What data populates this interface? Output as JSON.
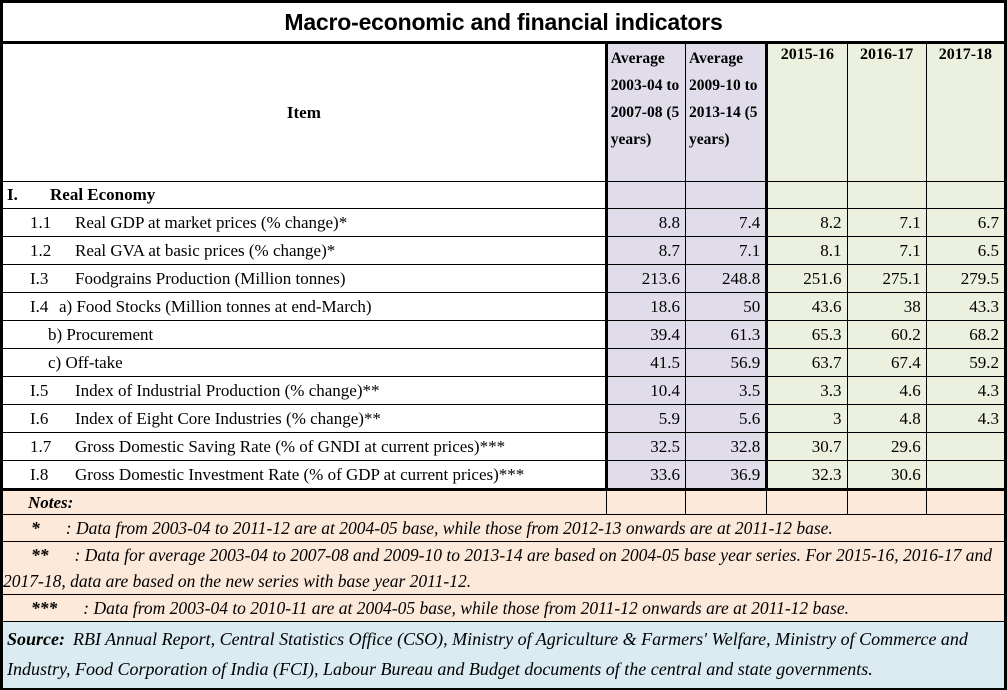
{
  "title": "Macro-economic and financial indicators",
  "colors": {
    "lavender_avg_columns": "#E1DCE9",
    "green_year_columns": "#EBF1DE",
    "peach_notes": "#FCE9DA",
    "blue_source": "#DAECF2",
    "border": "#000000"
  },
  "table": {
    "item_header": "Item",
    "column_headers": [
      "Average 2003-04 to 2007-08 (5 years)",
      "Average 2009-10 to 2013-14 (5 years)",
      "2015-16",
      "2016-17",
      "2017-18"
    ],
    "section": {
      "num": "I.",
      "label": "Real Economy"
    },
    "rows": [
      {
        "num": "1.1",
        "label": "Real GDP at market prices (% change)*",
        "indent": 0,
        "values": [
          "8.8",
          "7.4",
          "8.2",
          "7.1",
          "6.7"
        ]
      },
      {
        "num": "1.2",
        "label": "Real GVA at basic prices (% change)*",
        "indent": 0,
        "values": [
          "8.7",
          "7.1",
          "8.1",
          "7.1",
          "6.5"
        ]
      },
      {
        "num": "I.3",
        "label": "Foodgrains Production (Million tonnes)",
        "indent": 0,
        "values": [
          "213.6",
          "248.8",
          "251.6",
          "275.1",
          "279.5"
        ]
      },
      {
        "num": "I.4",
        "label": "a) Food Stocks (Million tonnes at end-March)",
        "indent": 0,
        "values": [
          "18.6",
          "50",
          "43.6",
          "38",
          "43.3"
        ]
      },
      {
        "num": "",
        "label": "b) Procurement",
        "indent": 2,
        "values": [
          "39.4",
          "61.3",
          "65.3",
          "60.2",
          "68.2"
        ]
      },
      {
        "num": "",
        "label": "c) Off-take",
        "indent": 2,
        "values": [
          "41.5",
          "56.9",
          "63.7",
          "67.4",
          "59.2"
        ]
      },
      {
        "num": "I.5",
        "label": "Index of Industrial Production (% change)**",
        "indent": 0,
        "values": [
          "10.4",
          "3.5",
          "3.3",
          "4.6",
          "4.3"
        ]
      },
      {
        "num": "I.6",
        "label": "Index of Eight Core Industries (% change)**",
        "indent": 0,
        "values": [
          "5.9",
          "5.6",
          "3",
          "4.8",
          "4.3"
        ]
      },
      {
        "num": "1.7",
        "label": "Gross Domestic Saving Rate (% of GNDI at current prices)***",
        "indent": 0,
        "values": [
          "32.5",
          "32.8",
          "30.7",
          "29.6",
          ""
        ]
      },
      {
        "num": "I.8",
        "label": "Gross Domestic Investment Rate (% of GDP at current prices)***",
        "indent": 0,
        "values": [
          "33.6",
          "36.9",
          "32.3",
          "30.6",
          ""
        ]
      }
    ]
  },
  "notes": {
    "label": "Notes:",
    "items": [
      {
        "marker": "*",
        "text": ": Data from 2003-04 to 2011-12 are at 2004-05 base, while those from 2012-13 onwards are at 2011-12 base."
      },
      {
        "marker": "**",
        "text": ": Data for average 2003-04 to 2007-08 and 2009-10 to 2013-14 are based on 2004-05 base year series. For 2015-16, 2016-17 and 2017-18, data are based on the new series with base year 2011-12."
      },
      {
        "marker": "***",
        "text": ": Data from 2003-04 to 2010-11 are at 2004-05 base, while those from 2011-12 onwards are at 2011-12 base."
      }
    ]
  },
  "source": {
    "label": "Source:",
    "text": "RBI Annual Report, Central Statistics Office (CSO), Ministry of Agriculture & Farmers' Welfare, Ministry of Commerce and Industry, Food Corporation of India (FCI), Labour Bureau and Budget documents of the central and state governments."
  }
}
